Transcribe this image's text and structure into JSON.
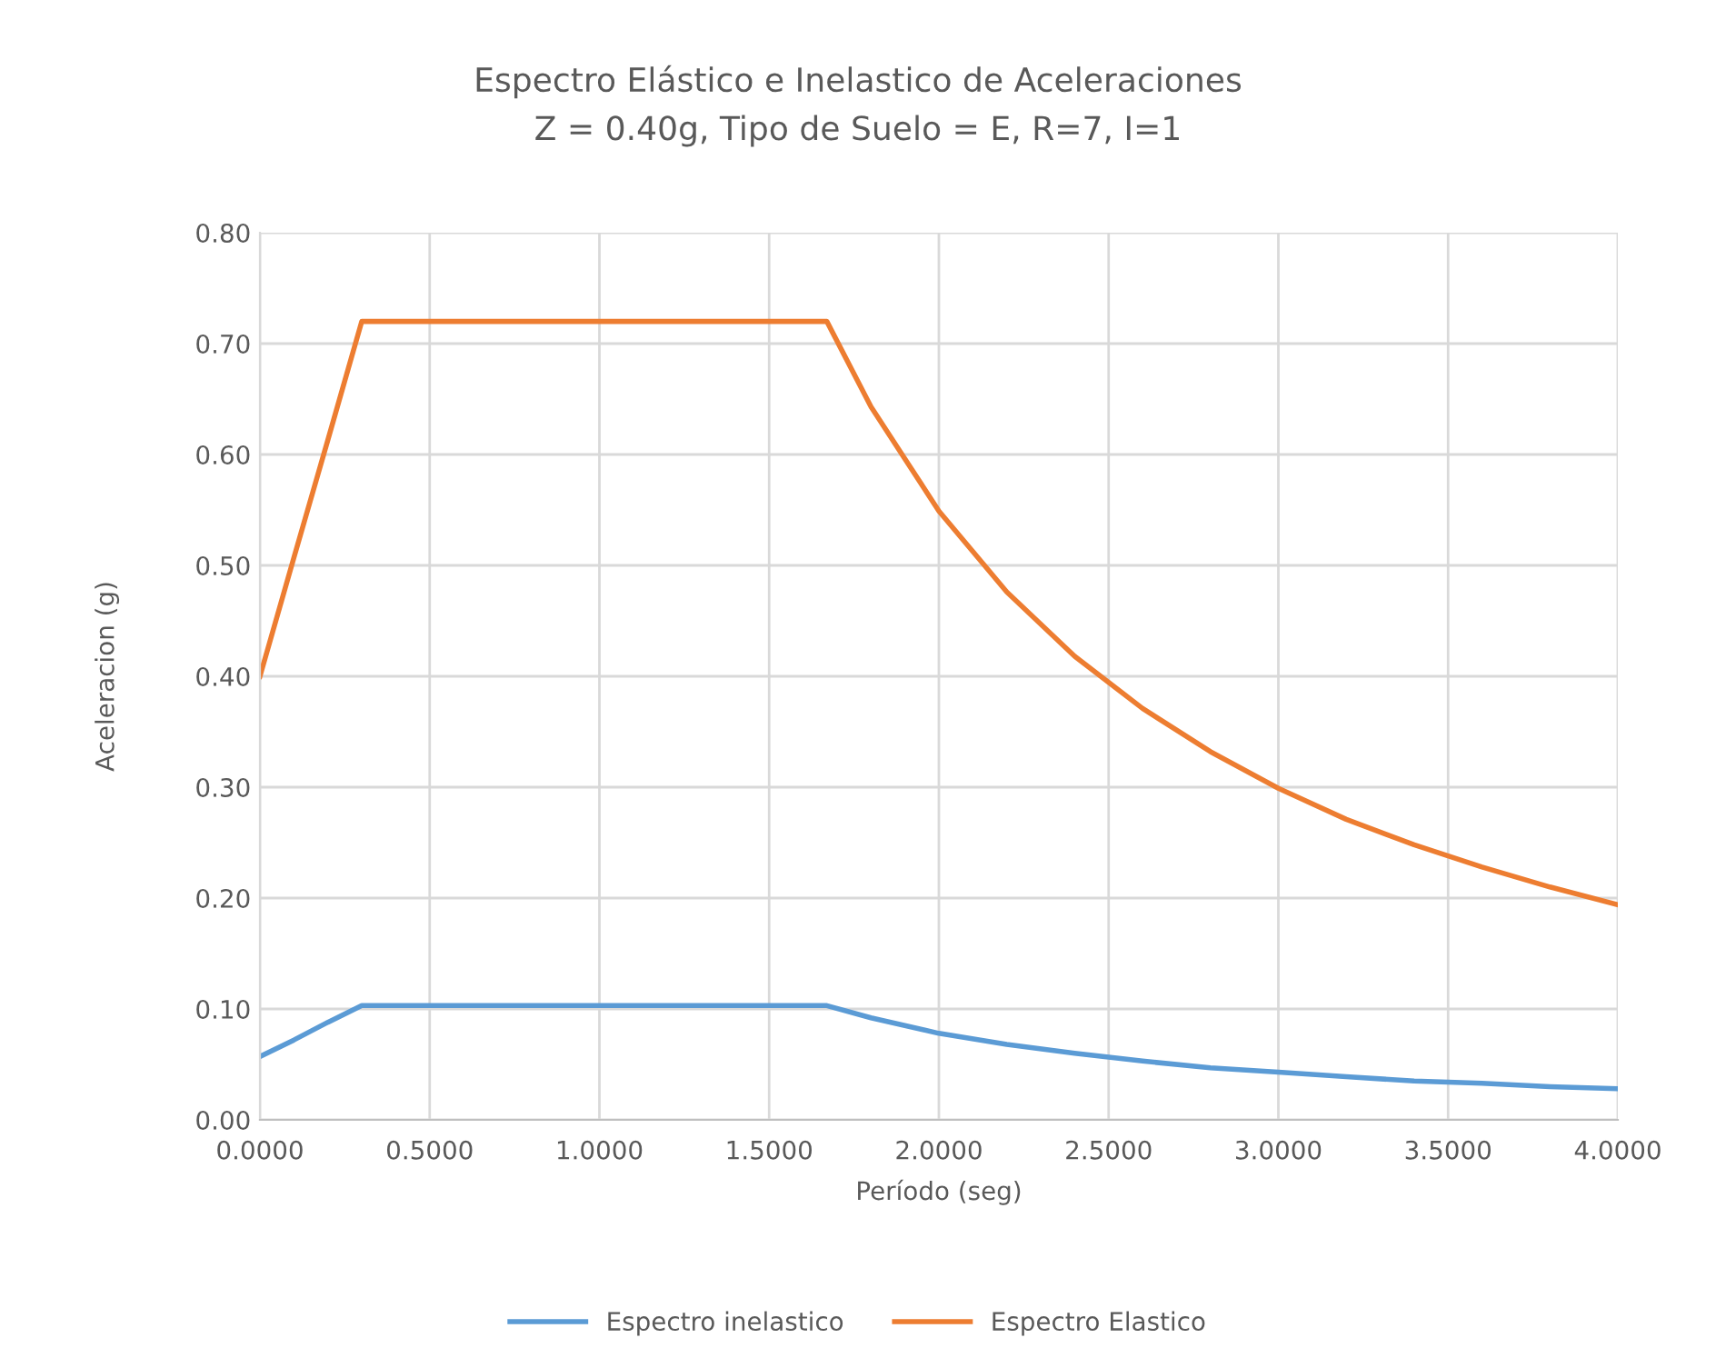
{
  "chart_data": {
    "type": "line",
    "title": "Espectro Elástico e Inelastico de Aceleraciones",
    "subtitle": "Z = 0.40g, Tipo de Suelo = E, R=7, I=1",
    "xlabel": "Período (seg)",
    "ylabel": "Aceleracion (g)",
    "x": [
      0,
      0.1,
      0.2,
      0.3,
      1.67,
      1.8,
      2.0,
      2.2,
      2.4,
      2.6,
      2.8,
      3.0,
      3.2,
      3.4,
      3.6,
      3.8,
      4.0
    ],
    "series": [
      {
        "name": "Espectro inelastico",
        "color": "#5b9bd5",
        "values": [
          0.057,
          0.072,
          0.088,
          0.103,
          0.103,
          0.092,
          0.078,
          0.068,
          0.06,
          0.053,
          0.047,
          0.043,
          0.039,
          0.035,
          0.033,
          0.03,
          0.028
        ]
      },
      {
        "name": "Espectro Elastico",
        "color": "#ed7d31",
        "values": [
          0.4,
          0.507,
          0.613,
          0.72,
          0.72,
          0.643,
          0.549,
          0.476,
          0.418,
          0.371,
          0.332,
          0.299,
          0.271,
          0.248,
          0.228,
          0.21,
          0.194
        ]
      }
    ],
    "xlim": [
      0,
      4
    ],
    "ylim": [
      0,
      0.8
    ],
    "xticks": [
      {
        "value": 0,
        "label": "0.0000"
      },
      {
        "value": 0.5,
        "label": "0.5000"
      },
      {
        "value": 1,
        "label": "1.0000"
      },
      {
        "value": 1.5,
        "label": "1.5000"
      },
      {
        "value": 2,
        "label": "2.0000"
      },
      {
        "value": 2.5,
        "label": "2.5000"
      },
      {
        "value": 3,
        "label": "3.0000"
      },
      {
        "value": 3.5,
        "label": "3.5000"
      },
      {
        "value": 4,
        "label": "4.0000"
      }
    ],
    "yticks": [
      {
        "value": 0,
        "label": "0.00"
      },
      {
        "value": 0.1,
        "label": "0.10"
      },
      {
        "value": 0.2,
        "label": "0.20"
      },
      {
        "value": 0.3,
        "label": "0.30"
      },
      {
        "value": 0.4,
        "label": "0.40"
      },
      {
        "value": 0.5,
        "label": "0.50"
      },
      {
        "value": 0.6,
        "label": "0.60"
      },
      {
        "value": 0.7,
        "label": "0.70"
      },
      {
        "value": 0.8,
        "label": "0.80"
      }
    ],
    "grid": true,
    "legend": "bottom",
    "marker": "none",
    "line_style": "solid"
  }
}
